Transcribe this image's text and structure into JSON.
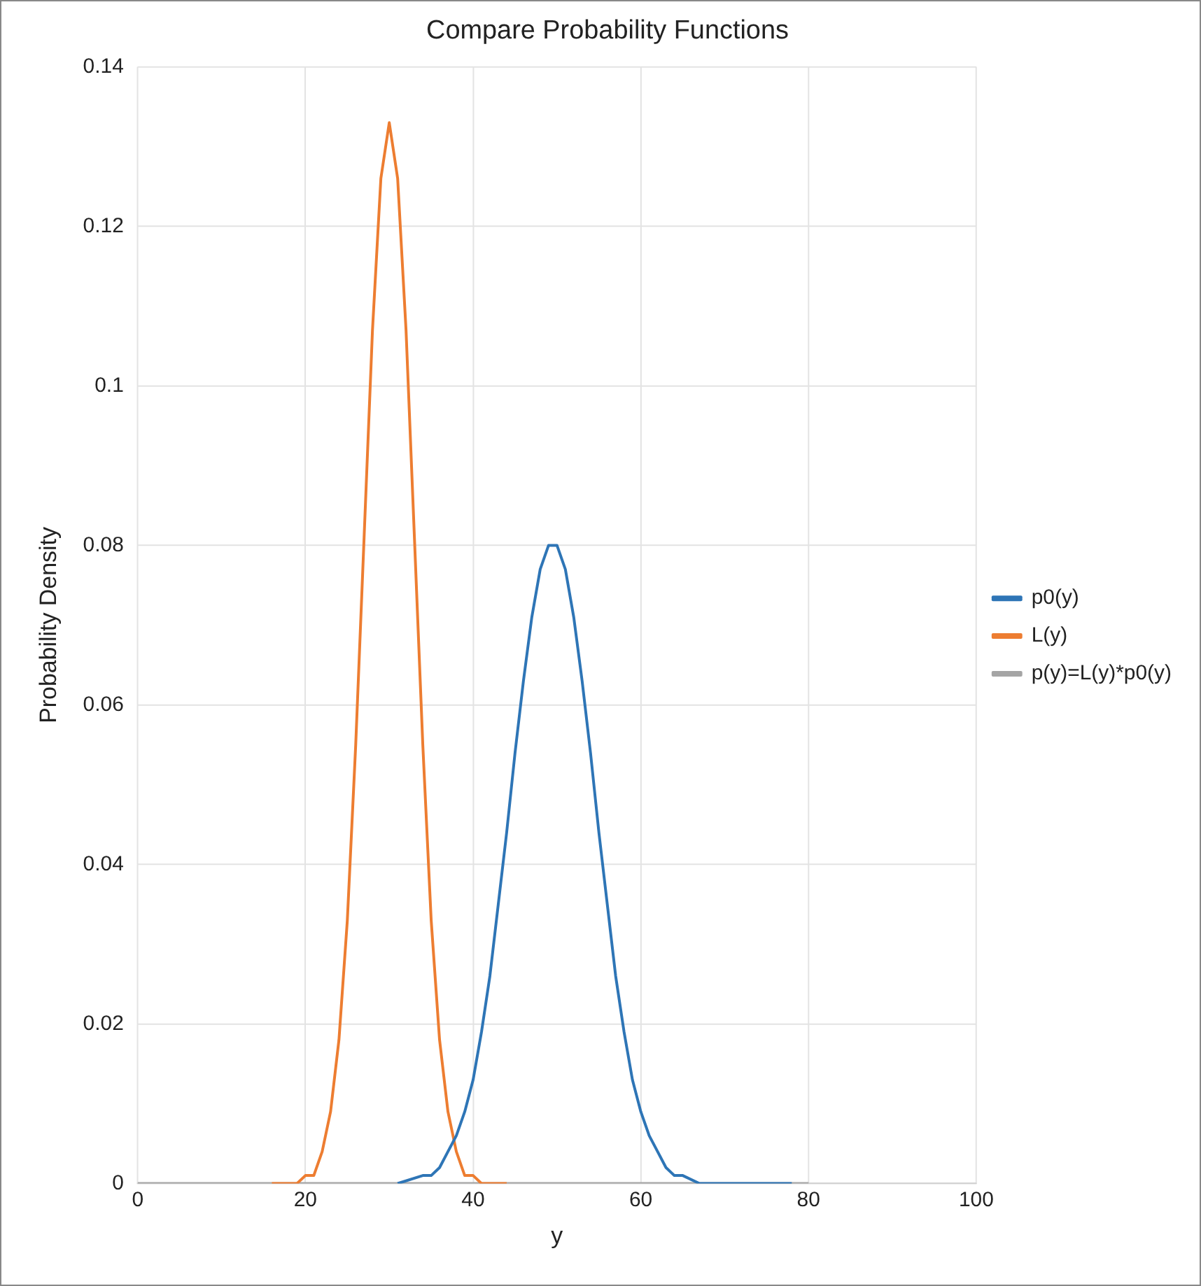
{
  "chart_data": {
    "type": "line",
    "title": "Compare Probability Functions",
    "xlabel": "y",
    "ylabel": "Probability Density",
    "xlim": [
      0,
      100
    ],
    "xticks": [
      0,
      20,
      40,
      60,
      80,
      100
    ],
    "ylim": [
      0,
      0.14
    ],
    "yticks": [
      0,
      0.02,
      0.04,
      0.06,
      0.08,
      0.1,
      0.12,
      0.14
    ],
    "grid": true,
    "legend": "right",
    "marker": "none",
    "line_style": "solid",
    "series": [
      {
        "name": "p0(y)",
        "color": "#2e75b6",
        "x": [
          31,
          34,
          35,
          36,
          37,
          38,
          39,
          40,
          41,
          42,
          43,
          44,
          45,
          46,
          47,
          48,
          49,
          50,
          51,
          52,
          53,
          54,
          55,
          56,
          57,
          58,
          59,
          60,
          61,
          62,
          63,
          64,
          65,
          67,
          78
        ],
        "values": [
          0,
          0.001,
          0.001,
          0.002,
          0.004,
          0.006,
          0.009,
          0.013,
          0.019,
          0.026,
          0.035,
          0.044,
          0.054,
          0.063,
          0.071,
          0.077,
          0.08,
          0.08,
          0.077,
          0.071,
          0.063,
          0.054,
          0.044,
          0.035,
          0.026,
          0.019,
          0.013,
          0.009,
          0.006,
          0.004,
          0.002,
          0.001,
          0.001,
          0,
          0
        ]
      },
      {
        "name": "L(y)",
        "color": "#ed7d31",
        "x": [
          16,
          19,
          20,
          21,
          22,
          23,
          24,
          25,
          26,
          27,
          28,
          29,
          30,
          31,
          32,
          33,
          34,
          35,
          36,
          37,
          38,
          39,
          40,
          41,
          44
        ],
        "values": [
          0,
          0,
          0.001,
          0.001,
          0.004,
          0.009,
          0.018,
          0.033,
          0.055,
          0.081,
          0.107,
          0.126,
          0.133,
          0.126,
          0.107,
          0.081,
          0.055,
          0.033,
          0.018,
          0.009,
          0.004,
          0.001,
          0.001,
          0,
          0
        ]
      },
      {
        "name": "p(y)=L(y)*p0(y)",
        "color": "#a5a5a5",
        "x": [
          0,
          80
        ],
        "values": [
          0,
          0
        ]
      }
    ]
  }
}
